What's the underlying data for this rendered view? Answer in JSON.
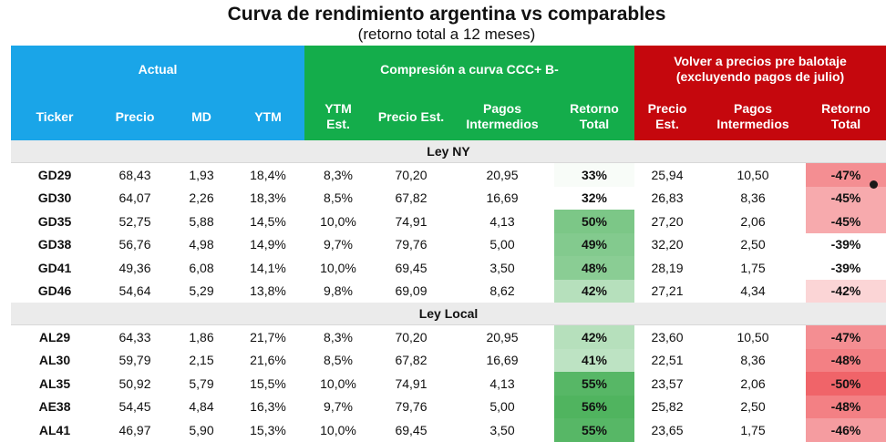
{
  "title": "Curva de rendimiento argentina vs comparables",
  "subtitle": "(retorno total a 12 meses)",
  "groups": {
    "actual": "Actual",
    "compresion": "Compresión a curva CCC+ B-",
    "volver_line1": "Volver  a precios pre balotaje",
    "volver_line2": "(excluyendo pagos de julio)"
  },
  "columns": {
    "ticker": "Ticker",
    "precio": "Precio",
    "md": "MD",
    "ytm": "YTM",
    "ytm_est_1": "YTM",
    "ytm_est_2": "Est.",
    "precio_est": "Precio  Est.",
    "pagos_1": "Pagos",
    "pagos_2": "Intermedios",
    "retorno_1": "Retorno",
    "retorno_2": "Total",
    "precio_est_b_1": "Precio",
    "precio_est_b_2": "Est.",
    "pagos_b_1": "Pagos",
    "pagos_b_2": "Intermedios",
    "retorno_b_1": "Retorno",
    "retorno_b_2": "Total"
  },
  "sections": [
    {
      "label": "Ley NY",
      "rows": [
        {
          "ticker": "GD29",
          "precio": "68,43",
          "md": "1,93",
          "ytm": "18,4%",
          "ytm_est": "8,3%",
          "precio_est": "70,20",
          "pagos": "20,95",
          "retorno": "33%",
          "precio_est_b": "25,94",
          "pagos_b": "10,50",
          "retorno_b": "-47%",
          "retorno_num": 33,
          "retorno_b_num": -47
        },
        {
          "ticker": "GD30",
          "precio": "64,07",
          "md": "2,26",
          "ytm": "18,3%",
          "ytm_est": "8,5%",
          "precio_est": "67,82",
          "pagos": "16,69",
          "retorno": "32%",
          "precio_est_b": "26,83",
          "pagos_b": "8,36",
          "retorno_b": "-45%",
          "retorno_num": 32,
          "retorno_b_num": -45
        },
        {
          "ticker": "GD35",
          "precio": "52,75",
          "md": "5,88",
          "ytm": "14,5%",
          "ytm_est": "10,0%",
          "precio_est": "74,91",
          "pagos": "4,13",
          "retorno": "50%",
          "precio_est_b": "27,20",
          "pagos_b": "2,06",
          "retorno_b": "-45%",
          "retorno_num": 50,
          "retorno_b_num": -45
        },
        {
          "ticker": "GD38",
          "precio": "56,76",
          "md": "4,98",
          "ytm": "14,9%",
          "ytm_est": "9,7%",
          "precio_est": "79,76",
          "pagos": "5,00",
          "retorno": "49%",
          "precio_est_b": "32,20",
          "pagos_b": "2,50",
          "retorno_b": "-39%",
          "retorno_num": 49,
          "retorno_b_num": -39
        },
        {
          "ticker": "GD41",
          "precio": "49,36",
          "md": "6,08",
          "ytm": "14,1%",
          "ytm_est": "10,0%",
          "precio_est": "69,45",
          "pagos": "3,50",
          "retorno": "48%",
          "precio_est_b": "28,19",
          "pagos_b": "1,75",
          "retorno_b": "-39%",
          "retorno_num": 48,
          "retorno_b_num": -39
        },
        {
          "ticker": "GD46",
          "precio": "54,64",
          "md": "5,29",
          "ytm": "13,8%",
          "ytm_est": "9,8%",
          "precio_est": "69,09",
          "pagos": "8,62",
          "retorno": "42%",
          "precio_est_b": "27,21",
          "pagos_b": "4,34",
          "retorno_b": "-42%",
          "retorno_num": 42,
          "retorno_b_num": -42
        }
      ]
    },
    {
      "label": "Ley Local",
      "rows": [
        {
          "ticker": "AL29",
          "precio": "64,33",
          "md": "1,86",
          "ytm": "21,7%",
          "ytm_est": "8,3%",
          "precio_est": "70,20",
          "pagos": "20,95",
          "retorno": "42%",
          "precio_est_b": "23,60",
          "pagos_b": "10,50",
          "retorno_b": "-47%",
          "retorno_num": 42,
          "retorno_b_num": -47
        },
        {
          "ticker": "AL30",
          "precio": "59,79",
          "md": "2,15",
          "ytm": "21,6%",
          "ytm_est": "8,5%",
          "precio_est": "67,82",
          "pagos": "16,69",
          "retorno": "41%",
          "precio_est_b": "22,51",
          "pagos_b": "8,36",
          "retorno_b": "-48%",
          "retorno_num": 41,
          "retorno_b_num": -48
        },
        {
          "ticker": "AL35",
          "precio": "50,92",
          "md": "5,79",
          "ytm": "15,5%",
          "ytm_est": "10,0%",
          "precio_est": "74,91",
          "pagos": "4,13",
          "retorno": "55%",
          "precio_est_b": "23,57",
          "pagos_b": "2,06",
          "retorno_b": "-50%",
          "retorno_num": 55,
          "retorno_b_num": -50
        },
        {
          "ticker": "AE38",
          "precio": "54,45",
          "md": "4,84",
          "ytm": "16,3%",
          "ytm_est": "9,7%",
          "precio_est": "79,76",
          "pagos": "5,00",
          "retorno": "56%",
          "precio_est_b": "25,82",
          "pagos_b": "2,50",
          "retorno_b": "-48%",
          "retorno_num": 56,
          "retorno_b_num": -48
        },
        {
          "ticker": "AL41",
          "precio": "46,97",
          "md": "5,90",
          "ytm": "15,3%",
          "ytm_est": "10,0%",
          "precio_est": "69,45",
          "pagos": "3,50",
          "retorno": "55%",
          "precio_est_b": "23,65",
          "pagos_b": "1,75",
          "retorno_b": "-46%",
          "retorno_num": 55,
          "retorno_b_num": -46
        }
      ]
    }
  ]
}
